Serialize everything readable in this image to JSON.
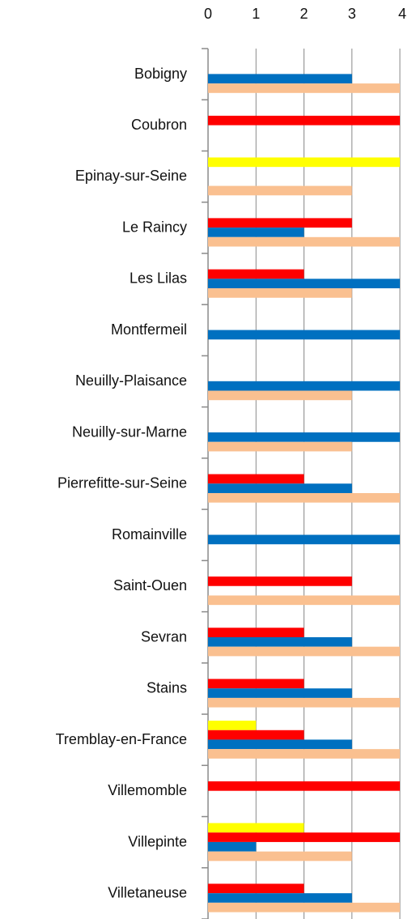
{
  "chart_data": {
    "type": "bar",
    "orientation": "horizontal",
    "categories": [
      "Bobigny",
      "Coubron",
      "Epinay-sur-Seine",
      "Le Raincy",
      "Les Lilas",
      "Montfermeil",
      "Neuilly-Plaisance",
      "Neuilly-sur-Marne",
      "Pierrefitte-sur-Seine",
      "Romainville",
      "Saint-Ouen",
      "Sevran",
      "Stains",
      "Tremblay-en-France",
      "Villemomble",
      "Villepinte",
      "Villetaneuse"
    ],
    "series": [
      {
        "color": "#ffff00",
        "values": [
          null,
          null,
          4,
          null,
          null,
          null,
          null,
          null,
          null,
          null,
          null,
          null,
          null,
          1,
          null,
          2,
          null
        ]
      },
      {
        "color": "#ff0000",
        "values": [
          null,
          4,
          null,
          3,
          2,
          null,
          null,
          null,
          2,
          null,
          3,
          2,
          2,
          2,
          4,
          4,
          2
        ]
      },
      {
        "color": "#0070c0",
        "values": [
          3,
          null,
          null,
          2,
          4,
          4,
          4,
          4,
          3,
          4,
          null,
          3,
          3,
          3,
          null,
          1,
          3
        ]
      },
      {
        "color": "#fac090",
        "values": [
          4,
          null,
          3,
          4,
          3,
          null,
          3,
          3,
          4,
          null,
          4,
          4,
          4,
          4,
          null,
          3,
          4
        ]
      }
    ],
    "xlim": [
      0,
      4
    ],
    "xticks": [
      0,
      1,
      2,
      3,
      4
    ],
    "grid": true
  }
}
